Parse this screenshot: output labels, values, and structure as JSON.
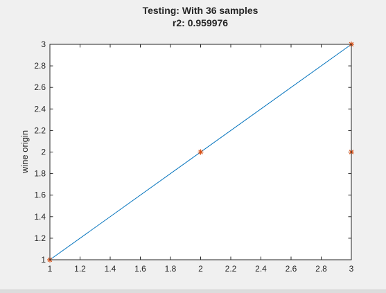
{
  "chart_data": {
    "type": "scatter",
    "title": "Testing: With 36 samples",
    "subtitle": "r2: 0.959976",
    "xlabel": "",
    "ylabel": "wine origin",
    "xlim": [
      1,
      3
    ],
    "ylim": [
      1,
      3
    ],
    "x_ticks": [
      1,
      1.2,
      1.4,
      1.6,
      1.8,
      2,
      2.2,
      2.4,
      2.6,
      2.8,
      3
    ],
    "y_ticks": [
      1,
      1.2,
      1.4,
      1.6,
      1.8,
      2,
      2.2,
      2.4,
      2.6,
      2.8,
      3
    ],
    "x_tick_labels": [
      "1",
      "1.2",
      "1.4",
      "1.6",
      "1.8",
      "2",
      "2.2",
      "2.4",
      "2.6",
      "2.8",
      "3"
    ],
    "y_tick_labels": [
      "1",
      "1.2",
      "1.4",
      "1.6",
      "1.8",
      "2",
      "2.2",
      "2.4",
      "2.6",
      "2.8",
      "3"
    ],
    "grid": false,
    "series": [
      {
        "type": "line",
        "color": "#0072bd",
        "x": [
          1,
          3
        ],
        "y": [
          1,
          3
        ]
      },
      {
        "type": "scatter",
        "marker": "asterisk",
        "color": "#d95319",
        "x": [
          1,
          2,
          3,
          3
        ],
        "y": [
          1,
          2,
          3,
          2
        ]
      }
    ]
  }
}
